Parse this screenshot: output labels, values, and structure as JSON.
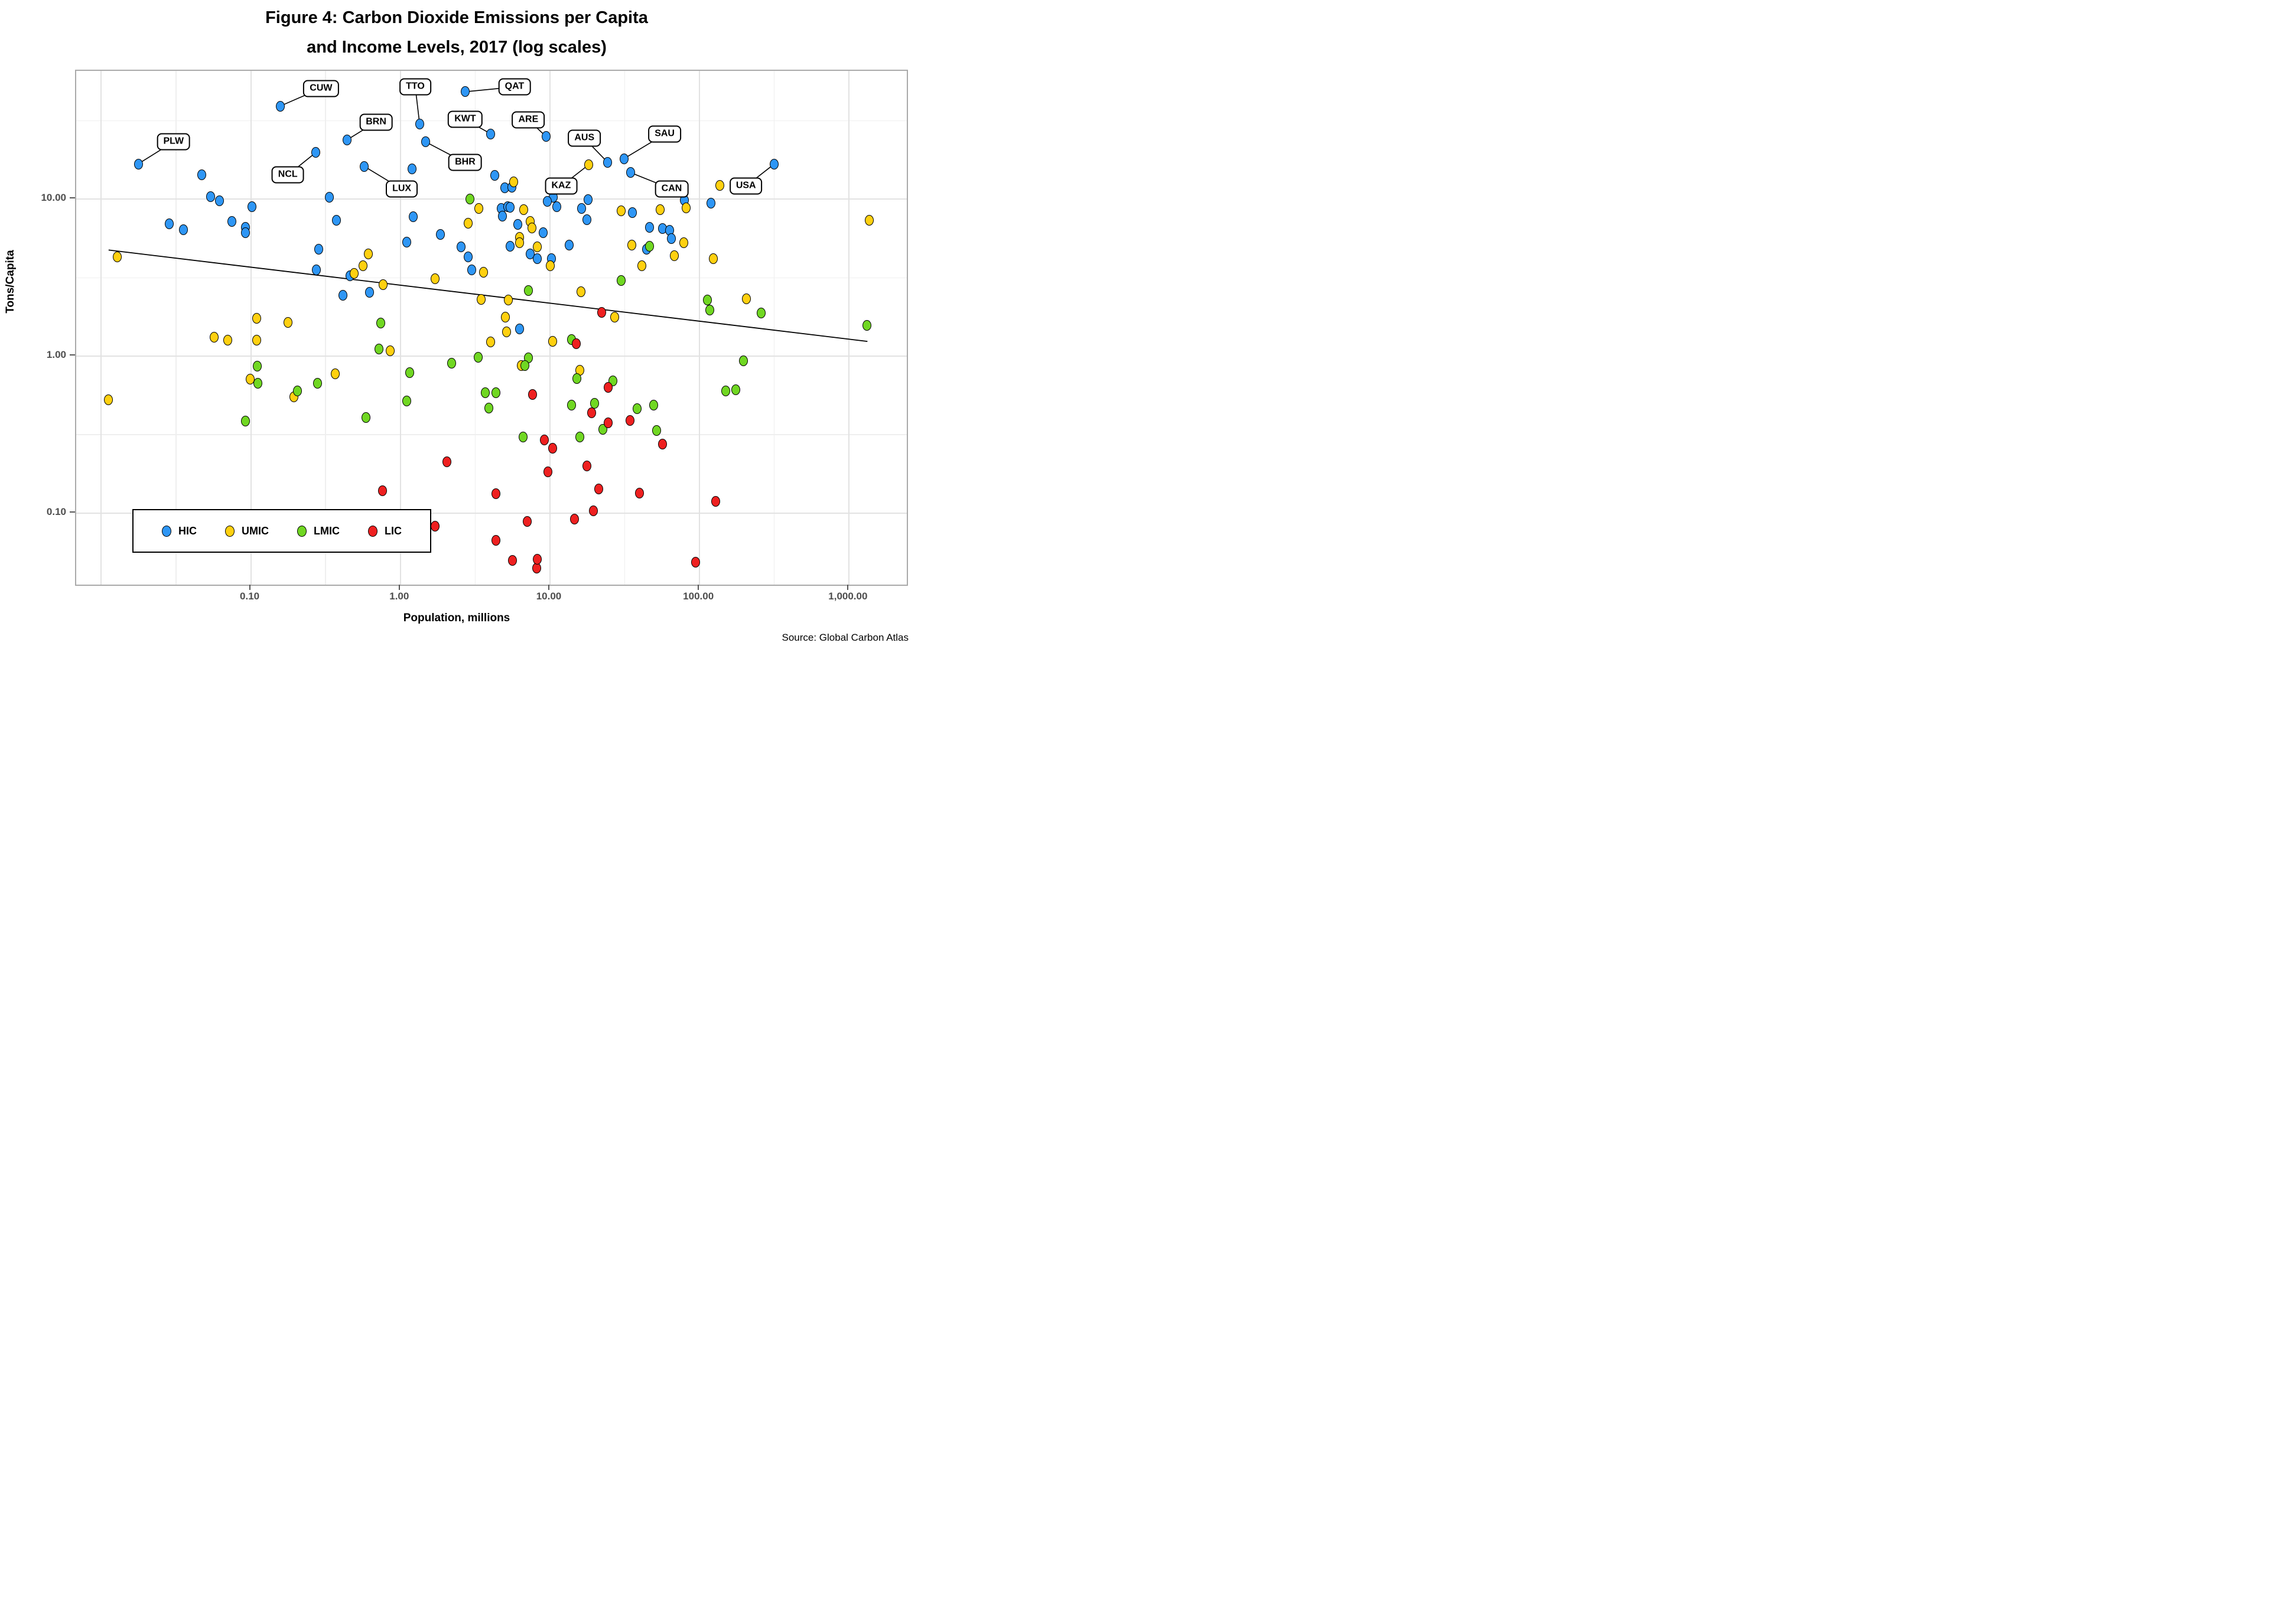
{
  "title": {
    "line1": "Figure 4: Carbon Dioxide Emissions per Capita",
    "line2": "and Income Levels, 2017 (log scales)"
  },
  "source": "Source: Global Carbon Atlas",
  "axes": {
    "x_title": "Population, millions",
    "y_title": "Tons/Capita",
    "x_ticks": [
      {
        "v": 0.1,
        "label": "0.10"
      },
      {
        "v": 1,
        "label": "1.00"
      },
      {
        "v": 10,
        "label": "10.00"
      },
      {
        "v": 100,
        "label": "100.00"
      },
      {
        "v": 1000,
        "label": "1,000.00"
      }
    ],
    "y_ticks": [
      {
        "v": 10,
        "label": "10.00"
      },
      {
        "v": 1,
        "label": "1.00"
      },
      {
        "v": 0.1,
        "label": "0.10"
      }
    ]
  },
  "legend": {
    "items": [
      {
        "label": "HIC",
        "color": "#2e96f5"
      },
      {
        "label": "UMIC",
        "color": "#ffd010"
      },
      {
        "label": "LMIC",
        "color": "#70d722"
      },
      {
        "label": "LIC",
        "color": "#ee2020"
      }
    ]
  },
  "chart_data": {
    "type": "scatter",
    "title": "Figure 4: Carbon Dioxide Emissions per Capita and Income Levels, 2017 (log scales)",
    "xlabel": "Population, millions",
    "ylabel": "Tons/Capita",
    "x_log": true,
    "y_log": true,
    "xlim": [
      0.0068,
      2430
    ],
    "ylim": [
      0.035,
      65.7
    ],
    "x_major_gridlines": [
      0.01,
      0.1,
      1,
      10,
      100,
      1000
    ],
    "x_minor_gridlines": [
      0.0316,
      0.316,
      3.16,
      31.6,
      316
    ],
    "y_major_gridlines": [
      0.1,
      1,
      10
    ],
    "y_minor_gridlines": [
      0.316,
      3.16,
      31.6
    ],
    "trendline": {
      "x1": 0.0114,
      "y1": 4.66,
      "x2": 1350,
      "y2": 1.22
    },
    "series": [
      {
        "name": "HIC",
        "color": "#2e96f5",
        "points": [
          [
            0.048,
            14.0
          ],
          [
            0.055,
            10.2
          ],
          [
            0.063,
            9.6
          ],
          [
            0.104,
            8.8
          ],
          [
            0.34,
            10.1
          ],
          [
            0.029,
            6.85
          ],
          [
            0.036,
            6.3
          ],
          [
            0.076,
            7.1
          ],
          [
            0.094,
            6.5
          ],
          [
            0.094,
            6.0
          ],
          [
            0.38,
            7.2
          ],
          [
            1.22,
            15.3
          ],
          [
            4.35,
            13.9
          ],
          [
            5.1,
            11.6
          ],
          [
            0.29,
            4.7
          ],
          [
            0.28,
            3.5
          ],
          [
            0.47,
            3.2
          ],
          [
            0.63,
            2.5
          ],
          [
            0.42,
            2.4
          ],
          [
            3.04,
            3.5
          ],
          [
            5.67,
            11.7
          ],
          [
            10.7,
            10.1
          ],
          [
            11.3,
            8.8
          ],
          [
            18.3,
            9.8
          ],
          [
            4.8,
            8.6
          ],
          [
            5.3,
            8.8
          ],
          [
            5.5,
            8.75
          ],
          [
            4.9,
            7.7
          ],
          [
            6.2,
            6.8
          ],
          [
            9.2,
            6.0
          ],
          [
            16.5,
            8.6
          ],
          [
            17.9,
            7.3
          ],
          [
            13.7,
            5.0
          ],
          [
            10.4,
            4.1
          ],
          [
            7.5,
            4.4
          ],
          [
            5.5,
            4.95
          ],
          [
            2.6,
            4.9
          ],
          [
            2.9,
            4.2
          ],
          [
            8.4,
            4.1
          ],
          [
            80.5,
            9.7
          ],
          [
            121,
            9.3
          ],
          [
            57.5,
            6.4
          ],
          [
            64,
            6.25
          ],
          [
            66,
            5.5
          ],
          [
            47,
            6.5
          ],
          [
            45,
            4.7
          ],
          [
            36.2,
            8.1
          ],
          [
            6.4,
            1.47
          ],
          [
            1.24,
            7.6
          ],
          [
            1.12,
            5.25
          ],
          [
            1.88,
            5.85
          ],
          [
            9.8,
            9.5
          ]
        ]
      },
      {
        "name": "UMIC",
        "color": "#ffd010",
        "points": [
          [
            0.013,
            4.2
          ],
          [
            0.0114,
            0.52
          ],
          [
            0.111,
            1.71
          ],
          [
            0.18,
            1.61
          ],
          [
            0.058,
            1.3
          ],
          [
            0.0715,
            1.24
          ],
          [
            0.111,
            1.24
          ],
          [
            0.101,
            0.7
          ],
          [
            0.197,
            0.54
          ],
          [
            0.372,
            0.76
          ],
          [
            0.62,
            4.4
          ],
          [
            0.57,
            3.7
          ],
          [
            0.5,
            3.3
          ],
          [
            0.78,
            2.8
          ],
          [
            1.73,
            3.06
          ],
          [
            3.67,
            3.38
          ],
          [
            3.52,
            2.26
          ],
          [
            5.35,
            2.24
          ],
          [
            16.4,
            2.53
          ],
          [
            5.11,
            1.74
          ],
          [
            5.23,
            1.4
          ],
          [
            4.07,
            1.21
          ],
          [
            10.6,
            1.22
          ],
          [
            0.87,
            1.06
          ],
          [
            16.1,
            0.8
          ],
          [
            6.55,
            0.86
          ],
          [
            5.8,
            12.7
          ],
          [
            3.4,
            8.6
          ],
          [
            6.8,
            8.4
          ],
          [
            2.9,
            6.9
          ],
          [
            7.5,
            7.1
          ],
          [
            7.7,
            6.45
          ],
          [
            6.4,
            5.6
          ],
          [
            6.4,
            5.2
          ],
          [
            8.4,
            4.9
          ],
          [
            10.2,
            3.7
          ],
          [
            30.5,
            8.3
          ],
          [
            139,
            12.0
          ],
          [
            55.5,
            8.4
          ],
          [
            83,
            8.65
          ],
          [
            80,
            5.2
          ],
          [
            69,
            4.3
          ],
          [
            126,
            4.1
          ],
          [
            41.8,
            3.7
          ],
          [
            35.9,
            5.0
          ],
          [
            210,
            2.28
          ],
          [
            27.5,
            1.74
          ],
          [
            1390,
            7.2
          ]
        ]
      },
      {
        "name": "LMIC",
        "color": "#70d722",
        "points": [
          [
            2.97,
            9.85
          ],
          [
            0.112,
            0.85
          ],
          [
            0.113,
            0.66
          ],
          [
            0.208,
            0.59
          ],
          [
            0.285,
            0.66
          ],
          [
            0.094,
            0.38
          ],
          [
            0.6,
            0.4
          ],
          [
            0.73,
            1.09
          ],
          [
            0.75,
            1.6
          ],
          [
            1.17,
            0.77
          ],
          [
            2.23,
            0.89
          ],
          [
            3.37,
            0.97
          ],
          [
            7.3,
            2.57
          ],
          [
            14.2,
            1.25
          ],
          [
            7.3,
            0.96
          ],
          [
            6.9,
            0.86
          ],
          [
            15.4,
            0.71
          ],
          [
            26.8,
            0.685
          ],
          [
            3.75,
            0.575
          ],
          [
            4.43,
            0.575
          ],
          [
            3.97,
            0.46
          ],
          [
            1.12,
            0.51
          ],
          [
            14.2,
            0.48
          ],
          [
            20.3,
            0.49
          ],
          [
            23,
            0.335
          ],
          [
            6.72,
            0.3
          ],
          [
            16.1,
            0.3
          ],
          [
            52.5,
            0.33
          ],
          [
            39,
            0.455
          ],
          [
            50,
            0.48
          ],
          [
            30.4,
            2.98
          ],
          [
            115,
            2.25
          ],
          [
            119,
            1.93
          ],
          [
            264,
            1.85
          ],
          [
            1340,
            1.55
          ],
          [
            47,
            4.95
          ],
          [
            200,
            0.92
          ],
          [
            152,
            0.59
          ],
          [
            178,
            0.6
          ]
        ]
      },
      {
        "name": "LIC",
        "color": "#ee2020",
        "points": [
          [
            22.5,
            1.87
          ],
          [
            15.2,
            1.18
          ],
          [
            25,
            0.62
          ],
          [
            7.8,
            0.56
          ],
          [
            19.4,
            0.43
          ],
          [
            25,
            0.37
          ],
          [
            34.8,
            0.383
          ],
          [
            57.5,
            0.27
          ],
          [
            40.4,
            0.132
          ],
          [
            131,
            0.117
          ],
          [
            95.5,
            0.048
          ],
          [
            0.77,
            0.137
          ],
          [
            2.09,
            0.208
          ],
          [
            1.73,
            0.081
          ],
          [
            4.43,
            0.131
          ],
          [
            7.15,
            0.087
          ],
          [
            4.43,
            0.066
          ],
          [
            9.34,
            0.287
          ],
          [
            10.6,
            0.254
          ],
          [
            9.9,
            0.18
          ],
          [
            17.9,
            0.197
          ],
          [
            21.6,
            0.14
          ],
          [
            19.8,
            0.102
          ],
          [
            14.9,
            0.09
          ],
          [
            8.3,
            0.044
          ],
          [
            8.4,
            0.05
          ],
          [
            5.7,
            0.049
          ]
        ]
      }
    ],
    "labeled_points": [
      {
        "code": "PLW",
        "cls": "HIC",
        "x": 0.018,
        "y": 16.5,
        "lx": 0.031,
        "ly": 22.8
      },
      {
        "code": "CUW",
        "cls": "HIC",
        "x": 0.16,
        "y": 38.5,
        "lx": 0.3,
        "ly": 50.0
      },
      {
        "code": "NCL",
        "cls": "HIC",
        "x": 0.277,
        "y": 19.5,
        "lx": 0.18,
        "ly": 14.0
      },
      {
        "code": "BRN",
        "cls": "HIC",
        "x": 0.449,
        "y": 23.5,
        "lx": 0.7,
        "ly": 30.5
      },
      {
        "code": "TTO",
        "cls": "HIC",
        "x": 1.37,
        "y": 29.5,
        "lx": 1.28,
        "ly": 51.0
      },
      {
        "code": "QAT",
        "cls": "HIC",
        "x": 2.75,
        "y": 47.5,
        "lx": 5.9,
        "ly": 51.0
      },
      {
        "code": "KWT",
        "cls": "HIC",
        "x": 4.1,
        "y": 25.6,
        "lx": 2.76,
        "ly": 31.7
      },
      {
        "code": "BHR",
        "cls": "HIC",
        "x": 1.5,
        "y": 22.8,
        "lx": 2.76,
        "ly": 16.8
      },
      {
        "code": "ARE",
        "cls": "HIC",
        "x": 9.6,
        "y": 24.6,
        "lx": 7.3,
        "ly": 31.5
      },
      {
        "code": "AUS",
        "cls": "HIC",
        "x": 24.7,
        "y": 16.9,
        "lx": 17.3,
        "ly": 24.0
      },
      {
        "code": "KAZ",
        "cls": "UMIC",
        "x": 18.5,
        "y": 16.3,
        "lx": 12.1,
        "ly": 11.9
      },
      {
        "code": "SAU",
        "cls": "HIC",
        "x": 31.8,
        "y": 17.8,
        "lx": 59.5,
        "ly": 25.5
      },
      {
        "code": "CAN",
        "cls": "HIC",
        "x": 35.3,
        "y": 14.5,
        "lx": 66.3,
        "ly": 11.4
      },
      {
        "code": "USA",
        "cls": "HIC",
        "x": 320,
        "y": 16.4,
        "lx": 208,
        "ly": 11.9
      },
      {
        "code": "LUX",
        "cls": "HIC",
        "x": 0.585,
        "y": 15.9,
        "lx": 1.04,
        "ly": 11.4
      }
    ]
  }
}
